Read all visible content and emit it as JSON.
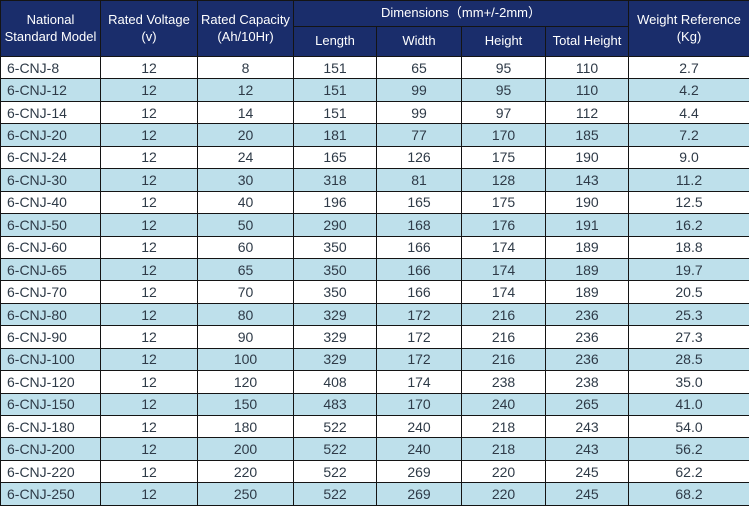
{
  "colors": {
    "header_bg": "#1a2d6b",
    "header_text": "#ffffff",
    "stripe_bg": "#bee0eb",
    "row_bg": "#ffffff",
    "border": "#141414",
    "cell_text": "#2e3a47"
  },
  "chart_data": {
    "type": "table",
    "title": "Battery specification table (6-CNJ series)",
    "header": {
      "model": {
        "line1": "National",
        "line2": "Standard Model"
      },
      "voltage": {
        "line1": "Rated Voltage",
        "line2": "(v)"
      },
      "capacity": {
        "line1": "Rated Capacity",
        "line2": "(Ah/10Hr)"
      },
      "dimensions_group": "Dimensions（mm+/-2mm）",
      "dimension_columns": [
        "Length",
        "Width",
        "Height",
        "Total Height"
      ],
      "weight": {
        "line1": "Weight Reference",
        "line2": "(Kg)"
      }
    },
    "columns": [
      "National Standard Model",
      "Rated Voltage (v)",
      "Rated Capacity (Ah/10Hr)",
      "Length",
      "Width",
      "Height",
      "Total Height",
      "Weight Reference (Kg)"
    ],
    "column_group": {
      "label": "Dimensions（mm+/-2mm）",
      "spans": [
        "Length",
        "Width",
        "Height",
        "Total Height"
      ]
    },
    "rows": [
      [
        "6-CNJ-8",
        "12",
        "8",
        "151",
        "65",
        "95",
        "110",
        "2.7"
      ],
      [
        "6-CNJ-12",
        "12",
        "12",
        "151",
        "99",
        "95",
        "110",
        "4.2"
      ],
      [
        "6-CNJ-14",
        "12",
        "14",
        "151",
        "99",
        "97",
        "112",
        "4.4"
      ],
      [
        "6-CNJ-20",
        "12",
        "20",
        "181",
        "77",
        "170",
        "185",
        "7.2"
      ],
      [
        "6-CNJ-24",
        "12",
        "24",
        "165",
        "126",
        "175",
        "190",
        "9.0"
      ],
      [
        "6-CNJ-30",
        "12",
        "30",
        "318",
        "81",
        "128",
        "143",
        "11.2"
      ],
      [
        "6-CNJ-40",
        "12",
        "40",
        "196",
        "165",
        "175",
        "190",
        "12.5"
      ],
      [
        "6-CNJ-50",
        "12",
        "50",
        "290",
        "168",
        "176",
        "191",
        "16.2"
      ],
      [
        "6-CNJ-60",
        "12",
        "60",
        "350",
        "166",
        "174",
        "189",
        "18.8"
      ],
      [
        "6-CNJ-65",
        "12",
        "65",
        "350",
        "166",
        "174",
        "189",
        "19.7"
      ],
      [
        "6-CNJ-70",
        "12",
        "70",
        "350",
        "166",
        "174",
        "189",
        "20.5"
      ],
      [
        "6-CNJ-80",
        "12",
        "80",
        "329",
        "172",
        "216",
        "236",
        "25.3"
      ],
      [
        "6-CNJ-90",
        "12",
        "90",
        "329",
        "172",
        "216",
        "236",
        "27.3"
      ],
      [
        "6-CNJ-100",
        "12",
        "100",
        "329",
        "172",
        "216",
        "236",
        "28.5"
      ],
      [
        "6-CNJ-120",
        "12",
        "120",
        "408",
        "174",
        "238",
        "238",
        "35.0"
      ],
      [
        "6-CNJ-150",
        "12",
        "150",
        "483",
        "170",
        "240",
        "265",
        "41.0"
      ],
      [
        "6-CNJ-180",
        "12",
        "180",
        "522",
        "240",
        "218",
        "243",
        "54.0"
      ],
      [
        "6-CNJ-200",
        "12",
        "200",
        "522",
        "240",
        "218",
        "243",
        "56.2"
      ],
      [
        "6-CNJ-220",
        "12",
        "220",
        "522",
        "269",
        "220",
        "245",
        "62.2"
      ],
      [
        "6-CNJ-250",
        "12",
        "250",
        "522",
        "269",
        "220",
        "245",
        "68.2"
      ]
    ]
  }
}
